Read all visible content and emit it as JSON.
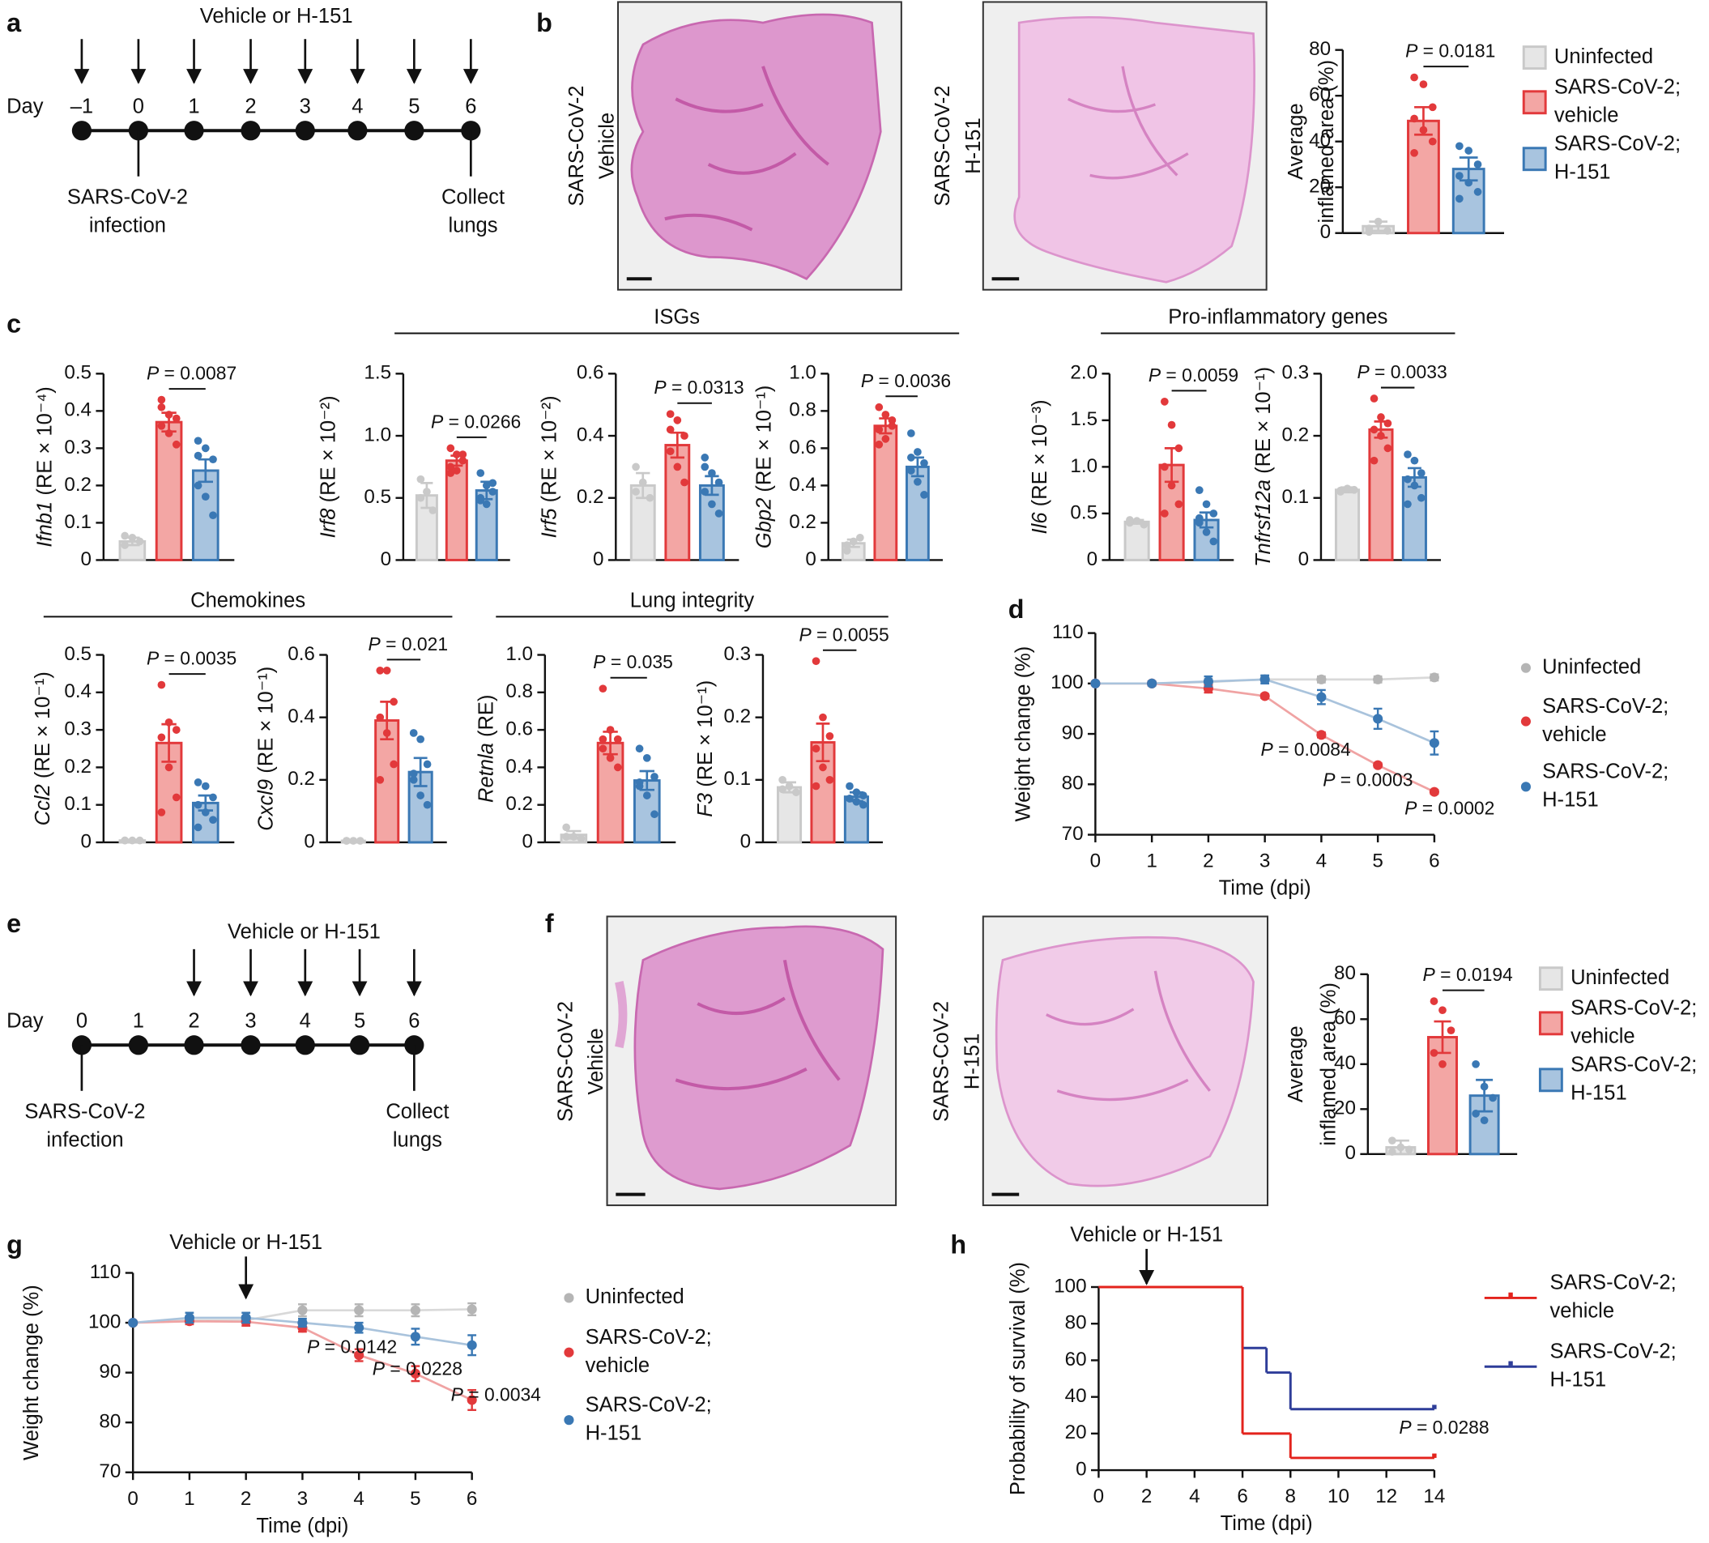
{
  "panel_letters": [
    "a",
    "b",
    "c",
    "d",
    "e",
    "f",
    "g",
    "h"
  ],
  "timelines": [
    {
      "title": "Vehicle or H-151",
      "day_label": "Day",
      "days": [
        "–1",
        "0",
        "1",
        "2",
        "3",
        "4",
        "5",
        "6"
      ],
      "treated": [
        true,
        true,
        true,
        true,
        true,
        true,
        true,
        true
      ],
      "start_label": [
        "SARS-CoV-2",
        "infection"
      ],
      "end_label": [
        "Collect",
        "lungs"
      ]
    },
    {
      "title": "Vehicle or H-151",
      "day_label": "Day",
      "days": [
        "0",
        "1",
        "2",
        "3",
        "4",
        "5",
        "6"
      ],
      "treated": [
        false,
        false,
        true,
        true,
        true,
        true,
        true
      ],
      "start_label": [
        "SARS-CoV-2",
        "infection"
      ],
      "end_label": [
        "Collect",
        "lungs"
      ]
    }
  ],
  "images": [
    {
      "label": [
        "SARS-CoV-2",
        "Vehicle"
      ]
    },
    {
      "label": [
        "SARS-CoV-2",
        "H-151"
      ]
    },
    {
      "label": [
        "SARS-CoV-2",
        "Vehicle"
      ]
    },
    {
      "label": [
        "SARS-CoV-2",
        "H-151"
      ]
    }
  ],
  "gene_groups": [
    {
      "label": "ISGs"
    },
    {
      "label": "Pro-inflammatory genes"
    },
    {
      "label": "Chemokines"
    },
    {
      "label": "Lung integrity"
    }
  ],
  "chart_data": [
    {
      "type": "bar",
      "ylabel": [
        "Average",
        "inflamed area (%)"
      ],
      "ylim": [
        0,
        80
      ],
      "yticks": [
        0,
        20,
        40,
        60,
        80
      ],
      "values": [
        3,
        49,
        28
      ],
      "errors": [
        2,
        6,
        5
      ],
      "points": [
        [
          2,
          5,
          1,
          0.5
        ],
        [
          68,
          65,
          55,
          50,
          45,
          40,
          35
        ],
        [
          38,
          36,
          30,
          25,
          22,
          18,
          15
        ]
      ],
      "colors": [
        "#c9c9c9",
        "#e2393b",
        "#3a78b4"
      ],
      "fills": [
        "#e6e6e6",
        "#f3a6a4",
        "#a8c4df"
      ],
      "pvalue": "P = 0.0181",
      "legend": [
        [
          "Uninfected"
        ],
        [
          "SARS-CoV-2;",
          "vehicle"
        ],
        [
          "SARS-CoV-2;",
          "H-151"
        ]
      ]
    },
    {
      "type": "bar",
      "ylabel": "Ifnb1 (RE × 10⁻⁴)",
      "ylim": [
        0,
        0.5
      ],
      "yticks": [
        0,
        0.1,
        0.2,
        0.3,
        0.4,
        0.5
      ],
      "values": [
        0.05,
        0.37,
        0.24
      ],
      "errors": [
        0.01,
        0.025,
        0.03
      ],
      "points": [
        [
          0.04,
          0.06,
          0.05,
          0.065
        ],
        [
          0.43,
          0.39,
          0.38,
          0.36,
          0.34,
          0.31,
          0.41
        ],
        [
          0.32,
          0.3,
          0.27,
          0.2,
          0.17,
          0.12,
          0.28
        ]
      ],
      "colors": [
        "#c9c9c9",
        "#e2393b",
        "#3a78b4"
      ],
      "fills": [
        "#e6e6e6",
        "#f3a6a4",
        "#a8c4df"
      ],
      "pvalue": "P = 0.0087"
    },
    {
      "type": "bar",
      "ylabel": "Irf8 (RE × 10⁻²)",
      "ylim": [
        0,
        1.5
      ],
      "yticks": [
        0,
        0.5,
        {
          "value": 1,
          "label": "1.0"
        },
        1.5
      ],
      "values": [
        0.52,
        0.8,
        0.56
      ],
      "errors": [
        0.1,
        0.04,
        0.07
      ],
      "points": [
        [
          0.65,
          0.55,
          0.4,
          0.5
        ],
        [
          0.9,
          0.85,
          0.8,
          0.75,
          0.72,
          0.85,
          0.7
        ],
        [
          0.7,
          0.6,
          0.55,
          0.5,
          0.45,
          0.62,
          0.48
        ]
      ],
      "colors": [
        "#c9c9c9",
        "#e2393b",
        "#3a78b4"
      ],
      "fills": [
        "#e6e6e6",
        "#f3a6a4",
        "#a8c4df"
      ],
      "pvalue": "P = 0.0266"
    },
    {
      "type": "bar",
      "ylabel": "Irf5 (RE × 10⁻²)",
      "ylim": [
        0,
        0.6
      ],
      "yticks": [
        0,
        0.2,
        0.4,
        0.6
      ],
      "values": [
        0.24,
        0.37,
        0.24
      ],
      "errors": [
        0.04,
        0.04,
        0.03
      ],
      "points": [
        [
          0.3,
          0.25,
          0.2,
          0.22
        ],
        [
          0.47,
          0.45,
          0.4,
          0.35,
          0.3,
          0.25,
          0.42
        ],
        [
          0.33,
          0.28,
          0.25,
          0.22,
          0.18,
          0.15,
          0.3
        ]
      ],
      "colors": [
        "#c9c9c9",
        "#e2393b",
        "#3a78b4"
      ],
      "fills": [
        "#e6e6e6",
        "#f3a6a4",
        "#a8c4df"
      ],
      "pvalue": "P = 0.0313"
    },
    {
      "type": "bar",
      "ylabel": "Gbp2 (RE × 10⁻¹)",
      "ylim": [
        0,
        1
      ],
      "yticks": [
        0,
        0.2,
        0.4,
        0.6,
        0.8,
        {
          "value": 1,
          "label": "1.0"
        }
      ],
      "values": [
        0.09,
        0.72,
        0.5
      ],
      "errors": [
        0.02,
        0.04,
        0.05
      ],
      "points": [
        [
          0.05,
          0.1,
          0.12,
          0.08
        ],
        [
          0.82,
          0.78,
          0.75,
          0.7,
          0.65,
          0.72,
          0.62
        ],
        [
          0.68,
          0.58,
          0.52,
          0.48,
          0.42,
          0.35,
          0.55
        ]
      ],
      "colors": [
        "#c9c9c9",
        "#e2393b",
        "#3a78b4"
      ],
      "fills": [
        "#e6e6e6",
        "#f3a6a4",
        "#a8c4df"
      ],
      "pvalue": "P = 0.0036"
    },
    {
      "type": "bar",
      "ylabel": "Il6 (RE × 10⁻³)",
      "ylim": [
        0,
        2
      ],
      "yticks": [
        0,
        0.5,
        {
          "value": 1,
          "label": "1.0"
        },
        1.5,
        {
          "value": 2,
          "label": "2.0"
        }
      ],
      "values": [
        0.41,
        1.02,
        0.43
      ],
      "errors": [
        0.02,
        0.18,
        0.08
      ],
      "points": [
        [
          0.4,
          0.42,
          0.38,
          0.43
        ],
        [
          1.7,
          1.45,
          1.2,
          1.0,
          0.8,
          0.6,
          0.5
        ],
        [
          0.75,
          0.6,
          0.5,
          0.4,
          0.3,
          0.2,
          0.45
        ]
      ],
      "colors": [
        "#c9c9c9",
        "#e2393b",
        "#3a78b4"
      ],
      "fills": [
        "#e6e6e6",
        "#f3a6a4",
        "#a8c4df"
      ],
      "pvalue": "P = 0.0059"
    },
    {
      "type": "bar",
      "ylabel": "Tnfrsf12a (RE × 10⁻¹)",
      "ylim": [
        0,
        0.3
      ],
      "yticks": [
        0,
        0.1,
        0.2,
        0.3
      ],
      "values": [
        0.113,
        0.21,
        0.133
      ],
      "errors": [
        0.004,
        0.013,
        0.015
      ],
      "points": [
        [
          0.11,
          0.115,
          0.113,
          0.112
        ],
        [
          0.26,
          0.23,
          0.22,
          0.21,
          0.2,
          0.18,
          0.16
        ],
        [
          0.17,
          0.16,
          0.14,
          0.13,
          0.12,
          0.1,
          0.09
        ]
      ],
      "colors": [
        "#c9c9c9",
        "#e2393b",
        "#3a78b4"
      ],
      "fills": [
        "#e6e6e6",
        "#f3a6a4",
        "#a8c4df"
      ],
      "pvalue": "P = 0.0033"
    },
    {
      "type": "bar",
      "ylabel": "Ccl2 (RE × 10⁻¹)",
      "ylim": [
        0,
        0.5
      ],
      "yticks": [
        0,
        0.1,
        0.2,
        0.3,
        0.4,
        0.5
      ],
      "values": [
        0.005,
        0.265,
        0.105
      ],
      "errors": [
        0.002,
        0.05,
        0.02
      ],
      "points": [
        [
          0.005,
          0.005,
          0.005,
          0.005
        ],
        [
          0.42,
          0.32,
          0.3,
          0.28,
          0.2,
          0.12,
          0.08
        ],
        [
          0.16,
          0.15,
          0.12,
          0.1,
          0.08,
          0.06,
          0.04
        ]
      ],
      "colors": [
        "#c9c9c9",
        "#e2393b",
        "#3a78b4"
      ],
      "fills": [
        "#e6e6e6",
        "#f3a6a4",
        "#a8c4df"
      ],
      "pvalue": "P = 0.0035"
    },
    {
      "type": "bar",
      "ylabel": "Cxcl9 (RE × 10⁻¹)",
      "ylim": [
        0,
        0.6
      ],
      "yticks": [
        0,
        0.2,
        0.4,
        0.6
      ],
      "values": [
        0.005,
        0.39,
        0.225
      ],
      "errors": [
        0.002,
        0.06,
        0.045
      ],
      "points": [
        [
          0.005,
          0.005,
          0.005,
          0.005
        ],
        [
          0.55,
          0.55,
          0.45,
          0.4,
          0.35,
          0.25,
          0.2
        ],
        [
          0.35,
          0.33,
          0.25,
          0.2,
          0.15,
          0.12,
          0.22
        ]
      ],
      "colors": [
        "#c9c9c9",
        "#e2393b",
        "#3a78b4"
      ],
      "fills": [
        "#e6e6e6",
        "#f3a6a4",
        "#a8c4df"
      ],
      "pvalue": "P = 0.021"
    },
    {
      "type": "bar",
      "ylabel": "Retnla (RE)",
      "ylim": [
        0,
        1
      ],
      "yticks": [
        0,
        0.2,
        0.4,
        0.6,
        0.8,
        {
          "value": 1,
          "label": "1.0"
        }
      ],
      "values": [
        0.04,
        0.53,
        0.33
      ],
      "errors": [
        0.02,
        0.06,
        0.05
      ],
      "points": [
        [
          0.08,
          0.03,
          0.02,
          0.03
        ],
        [
          0.82,
          0.6,
          0.55,
          0.5,
          0.45,
          0.4,
          0.55
        ],
        [
          0.5,
          0.45,
          0.35,
          0.3,
          0.25,
          0.15,
          0.32
        ]
      ],
      "colors": [
        "#c9c9c9",
        "#e2393b",
        "#3a78b4"
      ],
      "fills": [
        "#e6e6e6",
        "#f3a6a4",
        "#a8c4df"
      ],
      "pvalue": "P = 0.035"
    },
    {
      "type": "bar",
      "ylabel": "F3 (RE × 10⁻¹)",
      "ylim": [
        0,
        0.3
      ],
      "yticks": [
        0,
        0.1,
        0.2,
        0.3
      ],
      "values": [
        0.088,
        0.16,
        0.073
      ],
      "errors": [
        0.008,
        0.03,
        0.007
      ],
      "points": [
        [
          0.1,
          0.09,
          0.08,
          0.085
        ],
        [
          0.29,
          0.2,
          0.17,
          0.15,
          0.12,
          0.1,
          0.09
        ],
        [
          0.09,
          0.08,
          0.075,
          0.07,
          0.065,
          0.06,
          0.07
        ]
      ],
      "colors": [
        "#c9c9c9",
        "#e2393b",
        "#3a78b4"
      ],
      "fills": [
        "#e6e6e6",
        "#f3a6a4",
        "#a8c4df"
      ],
      "pvalue": "P = 0.0055"
    },
    {
      "type": "line",
      "xlabel": "Time (dpi)",
      "ylabel": "Weight change (%)",
      "x": [
        0,
        1,
        2,
        3,
        4,
        5,
        6
      ],
      "xlim": [
        0,
        6
      ],
      "xticks": [
        0,
        1,
        2,
        3,
        4,
        5,
        6
      ],
      "ylim": [
        70,
        110
      ],
      "yticks": [
        70,
        80,
        90,
        100,
        110
      ],
      "series": [
        {
          "name": [
            "Uninfected"
          ],
          "color": "#b5b5b5",
          "line_color": "#d9d9d9",
          "values": [
            100,
            100,
            100.3,
            100.8,
            100.8,
            100.8,
            101.2
          ],
          "errors": [
            0,
            0.3,
            0.6,
            0.6,
            0.6,
            0.6,
            0.6
          ]
        },
        {
          "name": [
            "SARS-CoV-2;",
            "vehicle"
          ],
          "color": "#e2393b",
          "line_color": "#f0a3a3",
          "values": [
            100,
            100,
            99,
            97.5,
            89.8,
            83.8,
            78.5
          ],
          "errors": [
            0,
            0.4,
            0.8,
            0.4,
            0.5,
            0.4,
            0.4
          ]
        },
        {
          "name": [
            "SARS-CoV-2;",
            "H-151"
          ],
          "color": "#3a78b4",
          "line_color": "#a9c3dc",
          "values": [
            100,
            100,
            100.4,
            100.8,
            97.3,
            93,
            88.2
          ],
          "errors": [
            0,
            0.4,
            1,
            0.8,
            1.4,
            2,
            2.3
          ]
        }
      ],
      "annotations": [
        "P = 0.0084",
        "P = 0.0003",
        "P = 0.0002"
      ]
    },
    {
      "type": "bar",
      "ylabel": [
        "Average",
        "inflamed area (%)"
      ],
      "ylim": [
        0,
        80
      ],
      "yticks": [
        0,
        20,
        40,
        60,
        80
      ],
      "values": [
        3,
        52,
        26
      ],
      "errors": [
        3,
        7,
        7
      ],
      "points": [
        [
          6,
          3,
          2,
          1
        ],
        [
          68,
          64,
          55,
          45,
          40
        ],
        [
          40,
          30,
          25,
          18,
          15
        ]
      ],
      "colors": [
        "#c9c9c9",
        "#e2393b",
        "#3a78b4"
      ],
      "fills": [
        "#e6e6e6",
        "#f3a6a4",
        "#a8c4df"
      ],
      "pvalue": "P = 0.0194",
      "legend": [
        [
          "Uninfected"
        ],
        [
          "SARS-CoV-2;",
          "vehicle"
        ],
        [
          "SARS-CoV-2;",
          "H-151"
        ]
      ]
    },
    {
      "type": "line",
      "xlabel": "Time (dpi)",
      "ylabel": "Weight change (%)",
      "x": [
        0,
        1,
        2,
        3,
        4,
        5,
        6
      ],
      "xlim": [
        0,
        6
      ],
      "xticks": [
        0,
        1,
        2,
        3,
        4,
        5,
        6
      ],
      "ylim": [
        70,
        110
      ],
      "yticks": [
        70,
        80,
        90,
        100,
        110
      ],
      "treatment_label": "Vehicle or H-151",
      "treatment_day": 2,
      "series": [
        {
          "name": [
            "Uninfected"
          ],
          "color": "#b5b5b5",
          "line_color": "#d9d9d9",
          "values": [
            100,
            100.5,
            100.5,
            102.5,
            102.5,
            102.5,
            102.7
          ],
          "errors": [
            0,
            0.6,
            0.6,
            1.2,
            1.2,
            1.2,
            1.2
          ]
        },
        {
          "name": [
            "SARS-CoV-2;",
            "vehicle"
          ],
          "color": "#e2393b",
          "line_color": "#f0a3a3",
          "values": [
            100,
            100.3,
            100.2,
            99,
            93.5,
            89.8,
            84.5
          ],
          "errors": [
            0,
            0.6,
            0.8,
            0.8,
            1.2,
            1.5,
            2
          ]
        },
        {
          "name": [
            "SARS-CoV-2;",
            "H-151"
          ],
          "color": "#3a78b4",
          "line_color": "#a9c3dc",
          "values": [
            100,
            101,
            101,
            100,
            99,
            97.2,
            95.5
          ],
          "errors": [
            0,
            1,
            1,
            0.8,
            1,
            1.6,
            2
          ]
        }
      ],
      "annotations": [
        "P = 0.0142",
        "P = 0.0228",
        "P = 0.0034"
      ]
    },
    {
      "type": "survival",
      "xlabel": "Time (dpi)",
      "ylabel": "Probability of survival (%)",
      "xlim": [
        0,
        14
      ],
      "xticks": [
        0,
        2,
        4,
        6,
        8,
        10,
        12,
        14
      ],
      "ylim": [
        0,
        100
      ],
      "yticks": [
        0,
        20,
        40,
        60,
        80,
        100
      ],
      "treatment_label": "Vehicle or H-151",
      "treatment_day": 2,
      "series": [
        {
          "name": [
            "SARS-CoV-2;",
            "vehicle"
          ],
          "color": "#e3231c",
          "times": [
            0,
            6,
            8,
            14
          ],
          "values": [
            100,
            20,
            6.7,
            6.7
          ]
        },
        {
          "name": [
            "SARS-CoV-2;",
            "H-151"
          ],
          "color": "#2e3d99",
          "times": [
            0,
            6,
            7,
            8,
            14
          ],
          "values": [
            100,
            66.7,
            53.3,
            33.3,
            33.3
          ]
        }
      ],
      "annotations": [
        "P = 0.0288"
      ]
    }
  ]
}
